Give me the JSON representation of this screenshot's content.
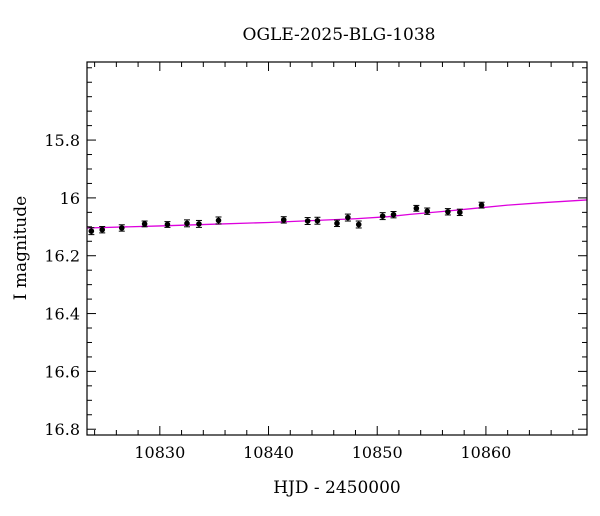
{
  "chart_data": {
    "type": "scatter",
    "title": "OGLE-2025-BLG-1038",
    "xlabel": "HJD - 2450000",
    "ylabel": "I magnitude",
    "xlim": [
      10823.3,
      10869.3
    ],
    "ylim": [
      16.82,
      15.53
    ],
    "y_inverted": true,
    "x_ticks": [
      10830,
      10840,
      10850,
      10860
    ],
    "x_tick_labels": [
      "10830",
      "10840",
      "10850",
      "10860"
    ],
    "x_minor_step": 2,
    "y_ticks": [
      15.8,
      16.0,
      16.2,
      16.4,
      16.6,
      16.8
    ],
    "y_tick_labels": [
      "15.8",
      "16",
      "16.2",
      "16.4",
      "16.6",
      "16.8"
    ],
    "y_minor_step": 0.05,
    "grid": false,
    "colors": {
      "points": "#000000",
      "model": "#dd00dd",
      "axes": "#000000"
    },
    "series": [
      {
        "kind": "points_with_errorbars",
        "x": [
          10823.7,
          10824.7,
          10826.5,
          10828.6,
          10830.7,
          10832.5,
          10833.6,
          10835.4,
          10841.4,
          10843.6,
          10844.5,
          10846.3,
          10847.3,
          10848.3,
          10850.5,
          10851.5,
          10853.6,
          10854.6,
          10856.5,
          10857.6,
          10859.6
        ],
        "y": [
          16.115,
          16.11,
          16.104,
          16.09,
          16.092,
          16.088,
          16.09,
          16.078,
          16.076,
          16.08,
          16.079,
          16.088,
          16.068,
          16.092,
          16.063,
          16.058,
          16.036,
          16.046,
          16.048,
          16.05,
          16.025
        ],
        "err": [
          0.012,
          0.011,
          0.011,
          0.01,
          0.01,
          0.012,
          0.012,
          0.012,
          0.011,
          0.012,
          0.012,
          0.011,
          0.012,
          0.012,
          0.012,
          0.011,
          0.01,
          0.011,
          0.011,
          0.011,
          0.01
        ]
      },
      {
        "kind": "model_line",
        "x": [
          10823.3,
          10830,
          10835,
          10840,
          10845,
          10848,
          10851,
          10853,
          10856,
          10859,
          10862,
          10865,
          10869.3
        ],
        "y": [
          16.104,
          16.097,
          16.091,
          16.085,
          16.077,
          16.072,
          16.065,
          16.057,
          16.047,
          16.036,
          16.025,
          16.017,
          16.007
        ]
      }
    ]
  }
}
